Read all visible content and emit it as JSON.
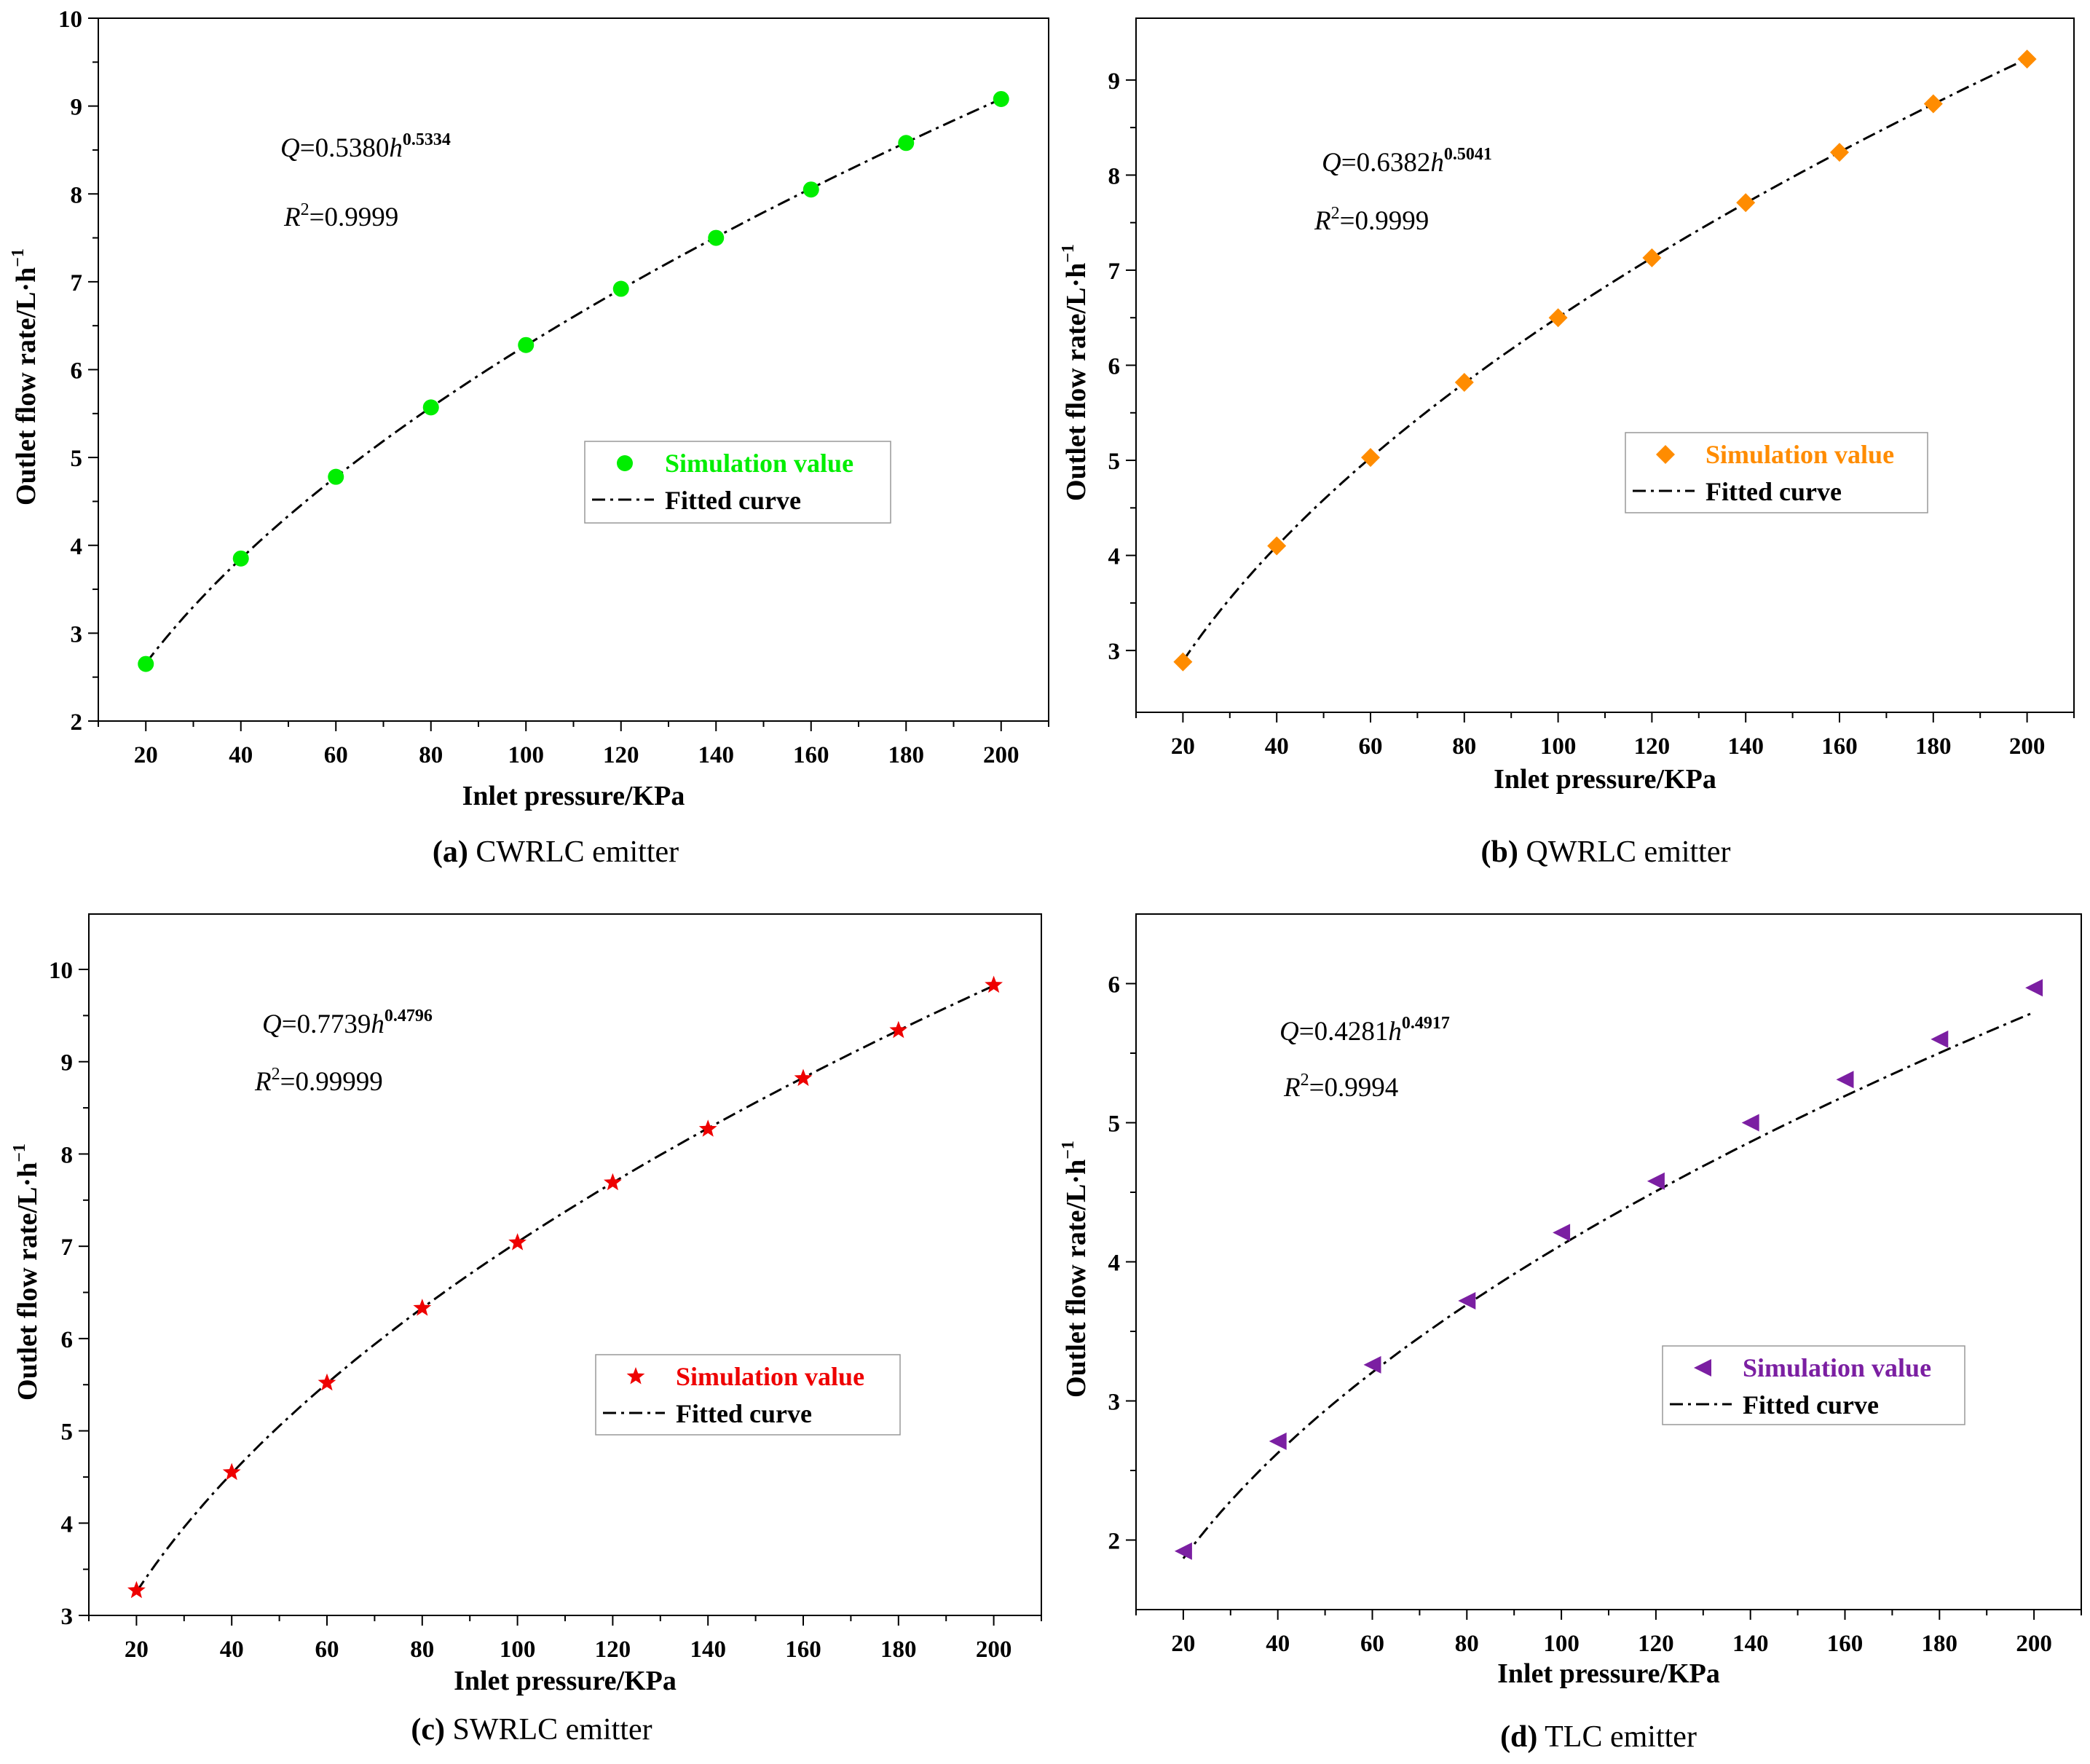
{
  "figure": {
    "panels": [
      {
        "caption_letter": "(a)",
        "caption_text": "CWRLC emitter",
        "equation": {
          "lhs_var": "Q",
          "coef": "=0.5380",
          "base": "h",
          "exponent": "0.5334",
          "r2_var": "R",
          "r2_sup": "2",
          "r2_val": "=0.9999"
        },
        "legend": {
          "marker_label": "Simulation value",
          "line_label": "Fitted curve"
        }
      },
      {
        "caption_letter": "(b)",
        "caption_text": "QWRLC emitter",
        "equation": {
          "lhs_var": "Q",
          "coef": "=0.6382",
          "base": "h",
          "exponent": "0.5041",
          "r2_var": "R",
          "r2_sup": "2",
          "r2_val": "=0.9999"
        },
        "legend": {
          "marker_label": "Simulation value",
          "line_label": "Fitted curve"
        }
      },
      {
        "caption_letter": "(c)",
        "caption_text": "SWRLC emitter",
        "equation": {
          "lhs_var": "Q",
          "coef": "=0.7739",
          "base": "h",
          "exponent": "0.4796",
          "r2_var": "R",
          "r2_sup": "2",
          "r2_val": "=0.99999"
        },
        "legend": {
          "marker_label": "Simulation value",
          "line_label": "Fitted curve"
        }
      },
      {
        "caption_letter": "(d)",
        "caption_text": "TLC emitter",
        "equation": {
          "lhs_var": "Q",
          "coef": "=0.4281",
          "base": "h",
          "exponent": "0.4917",
          "r2_var": "R",
          "r2_sup": "2",
          "r2_val": "=0.9994"
        },
        "legend": {
          "marker_label": "Simulation value",
          "line_label": "Fitted curve"
        }
      }
    ]
  },
  "chart_data": [
    {
      "type": "scatter",
      "title": "(a) CWRLC emitter",
      "xlabel": "Inlet pressure/KPa",
      "ylabel": "Outlet flow rate/L·h",
      "ylabel_sup": "−1",
      "xlim": [
        10,
        210
      ],
      "ylim": [
        2,
        10
      ],
      "xticks": [
        20,
        40,
        60,
        80,
        100,
        120,
        140,
        160,
        180,
        200
      ],
      "yticks": [
        2,
        3,
        4,
        5,
        6,
        7,
        8,
        9,
        10
      ],
      "marker": "circle",
      "color": "#00ee00",
      "fit": {
        "coef": 0.538,
        "exp": 0.5334
      },
      "series": [
        {
          "name": "Simulation value",
          "x": [
            20,
            40,
            60,
            80,
            100,
            120,
            140,
            160,
            180,
            200
          ],
          "y": [
            2.65,
            3.85,
            4.78,
            5.57,
            6.28,
            6.92,
            7.5,
            8.05,
            8.58,
            9.08
          ]
        }
      ]
    },
    {
      "type": "scatter",
      "title": "(b) QWRLC emitter",
      "xlabel": "Inlet pressure/KPa",
      "ylabel": "Outlet flow rate/L·h",
      "ylabel_sup": "−1",
      "xlim": [
        10,
        210
      ],
      "ylim": [
        2.35,
        9.65
      ],
      "xticks": [
        20,
        40,
        60,
        80,
        100,
        120,
        140,
        160,
        180,
        200
      ],
      "yticks": [
        3,
        4,
        5,
        6,
        7,
        8,
        9
      ],
      "marker": "diamond",
      "color": "#ff8c00",
      "fit": {
        "coef": 0.6382,
        "exp": 0.5041
      },
      "series": [
        {
          "name": "Simulation value",
          "x": [
            20,
            40,
            60,
            80,
            100,
            120,
            140,
            160,
            180,
            200
          ],
          "y": [
            2.88,
            4.1,
            5.03,
            5.82,
            6.5,
            7.13,
            7.71,
            8.24,
            8.75,
            9.22
          ]
        }
      ]
    },
    {
      "type": "scatter",
      "title": "(c) SWRLC emitter",
      "xlabel": "Inlet pressure/KPa",
      "ylabel": "Outlet flow rate/L·h",
      "ylabel_sup": "−1",
      "xlim": [
        10,
        210
      ],
      "ylim": [
        3,
        10.6
      ],
      "xticks": [
        20,
        40,
        60,
        80,
        100,
        120,
        140,
        160,
        180,
        200
      ],
      "yticks": [
        3,
        4,
        5,
        6,
        7,
        8,
        9,
        10
      ],
      "marker": "star",
      "color": "#ee0000",
      "fit": {
        "coef": 0.7739,
        "exp": 0.4796
      },
      "series": [
        {
          "name": "Simulation value",
          "x": [
            20,
            40,
            60,
            80,
            100,
            120,
            140,
            160,
            180,
            200
          ],
          "y": [
            3.27,
            4.55,
            5.52,
            6.33,
            7.04,
            7.69,
            8.27,
            8.82,
            9.34,
            9.83
          ]
        }
      ]
    },
    {
      "type": "scatter",
      "title": "(d) TLC emitter",
      "xlabel": "Inlet pressure/KPa",
      "ylabel": "Outlet flow rate/L·h",
      "ylabel_sup": "−1",
      "xlim": [
        10,
        210
      ],
      "ylim": [
        1.5,
        6.5
      ],
      "xticks": [
        20,
        40,
        60,
        80,
        100,
        120,
        140,
        160,
        180,
        200
      ],
      "yticks": [
        2,
        3,
        4,
        5,
        6
      ],
      "marker": "triangle-left",
      "color": "#7b1fa2",
      "fit": {
        "coef": 0.4281,
        "exp": 0.4917
      },
      "series": [
        {
          "name": "Simulation value",
          "x": [
            20,
            40,
            60,
            80,
            100,
            120,
            140,
            160,
            180,
            200
          ],
          "y": [
            1.92,
            2.71,
            3.26,
            3.72,
            4.21,
            4.58,
            5.0,
            5.31,
            5.6,
            5.97
          ]
        }
      ]
    }
  ]
}
